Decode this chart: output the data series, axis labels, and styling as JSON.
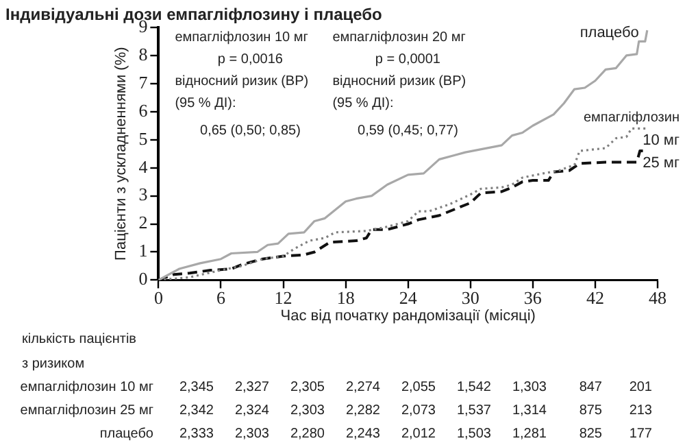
{
  "chart_data": {
    "type": "line",
    "title": "Індивідуальні дози емпагліфлозину і плацебо",
    "xlabel": "Час від початку рандомізації (місяці)",
    "ylabel": "Пацієнти з ускладненнями (%)",
    "xlim": [
      0,
      48
    ],
    "xticks": [
      0,
      6,
      12,
      18,
      24,
      30,
      36,
      42,
      48
    ],
    "ylim": [
      0,
      9
    ],
    "yticks": [
      0,
      1,
      2,
      3,
      4,
      5,
      6,
      7,
      8,
      9
    ],
    "grid": false,
    "legend": false,
    "marker": "none",
    "series": [
      {
        "name": "плацебо",
        "color": "#a8a8a8",
        "line_style": "solid",
        "x": [
          0,
          2,
          4,
          6,
          7,
          9.5,
          10.5,
          11.5,
          12.5,
          14,
          15,
          16,
          18,
          19,
          20.5,
          22,
          24,
          25.5,
          27,
          28.5,
          29.5,
          33,
          34,
          35,
          36,
          38,
          39,
          40,
          41,
          42,
          43,
          44,
          45,
          46,
          46.2,
          46.8,
          47
        ],
        "values": [
          0,
          0.4,
          0.6,
          0.75,
          0.95,
          1,
          1.25,
          1.3,
          1.65,
          1.7,
          2.1,
          2.2,
          2.8,
          2.9,
          3,
          3.4,
          3.75,
          3.8,
          4.3,
          4.45,
          4.55,
          4.8,
          5.15,
          5.25,
          5.5,
          5.9,
          6.3,
          6.8,
          6.85,
          7.1,
          7.5,
          7.55,
          8,
          8.05,
          8.5,
          8.5,
          8.9
        ]
      },
      {
        "name": "10 мг",
        "color": "#808080",
        "line_style": "dotted",
        "x": [
          0,
          3,
          6,
          8,
          10,
          12,
          13,
          14.5,
          16,
          17,
          20,
          22,
          24,
          25,
          26,
          28,
          30,
          31,
          33,
          34,
          35,
          37,
          38.5,
          40,
          40.5,
          43,
          44,
          45,
          45.5,
          47
        ],
        "values": [
          0,
          0.1,
          0.35,
          0.5,
          0.75,
          0.85,
          1.1,
          1.4,
          1.5,
          1.7,
          1.75,
          1.9,
          2.1,
          2.45,
          2.45,
          2.7,
          3.05,
          3.25,
          3.3,
          3.4,
          3.65,
          3.8,
          3.9,
          4.1,
          4.6,
          4.7,
          5.05,
          5.1,
          5.4,
          5.4
        ]
      },
      {
        "name": "25 мг",
        "color": "#111111",
        "line_style": "dashed",
        "x": [
          0,
          1.5,
          3,
          5,
          7,
          8,
          10,
          12,
          14,
          15,
          16.5,
          19,
          20,
          20.5,
          22,
          24,
          25,
          27,
          29,
          30,
          31,
          33,
          34,
          35,
          36,
          37.5,
          38,
          39.5,
          40.5,
          43,
          46,
          46.3,
          47
        ],
        "values": [
          0,
          0.2,
          0.25,
          0.35,
          0.4,
          0.55,
          0.75,
          0.85,
          0.9,
          1,
          1.35,
          1.4,
          1.5,
          1.8,
          1.8,
          2,
          2.15,
          2.3,
          2.6,
          2.75,
          3.1,
          3.15,
          3.3,
          3.5,
          3.55,
          3.55,
          3.85,
          3.9,
          4.15,
          4.2,
          4.2,
          4.6,
          4.6
        ]
      }
    ],
    "annotations": [
      "емпагліфлозин 10 мг\np = 0,0016\nвідносний ризик (ВР)\n(95 % ДІ):\n0,65 (0,50; 0,85)",
      "емпагліфлозин 20 мг\np = 0,0001\nвідносний ризик (ВР)\n(95 % ДІ):\n0,59 (0,45; 0,77)",
      "емпагліфлозин",
      "кількість пацієнтів\nз ризиком",
      "емпагліфлозин 10 мг",
      "емпагліфлозин 25 мг",
      "плацебо",
      "2,345",
      "2,327",
      "2,305",
      "2,274",
      "2,055",
      "1,542",
      "1,303",
      "847",
      "201",
      "2,342",
      "2,324",
      "2,303",
      "2,282",
      "2,073",
      "1,537",
      "1,314",
      "875",
      "213",
      "2,333",
      "2,303",
      "2,280",
      "2,243",
      "2,012",
      "1,503",
      "1,281",
      "825",
      "177"
    ]
  }
}
